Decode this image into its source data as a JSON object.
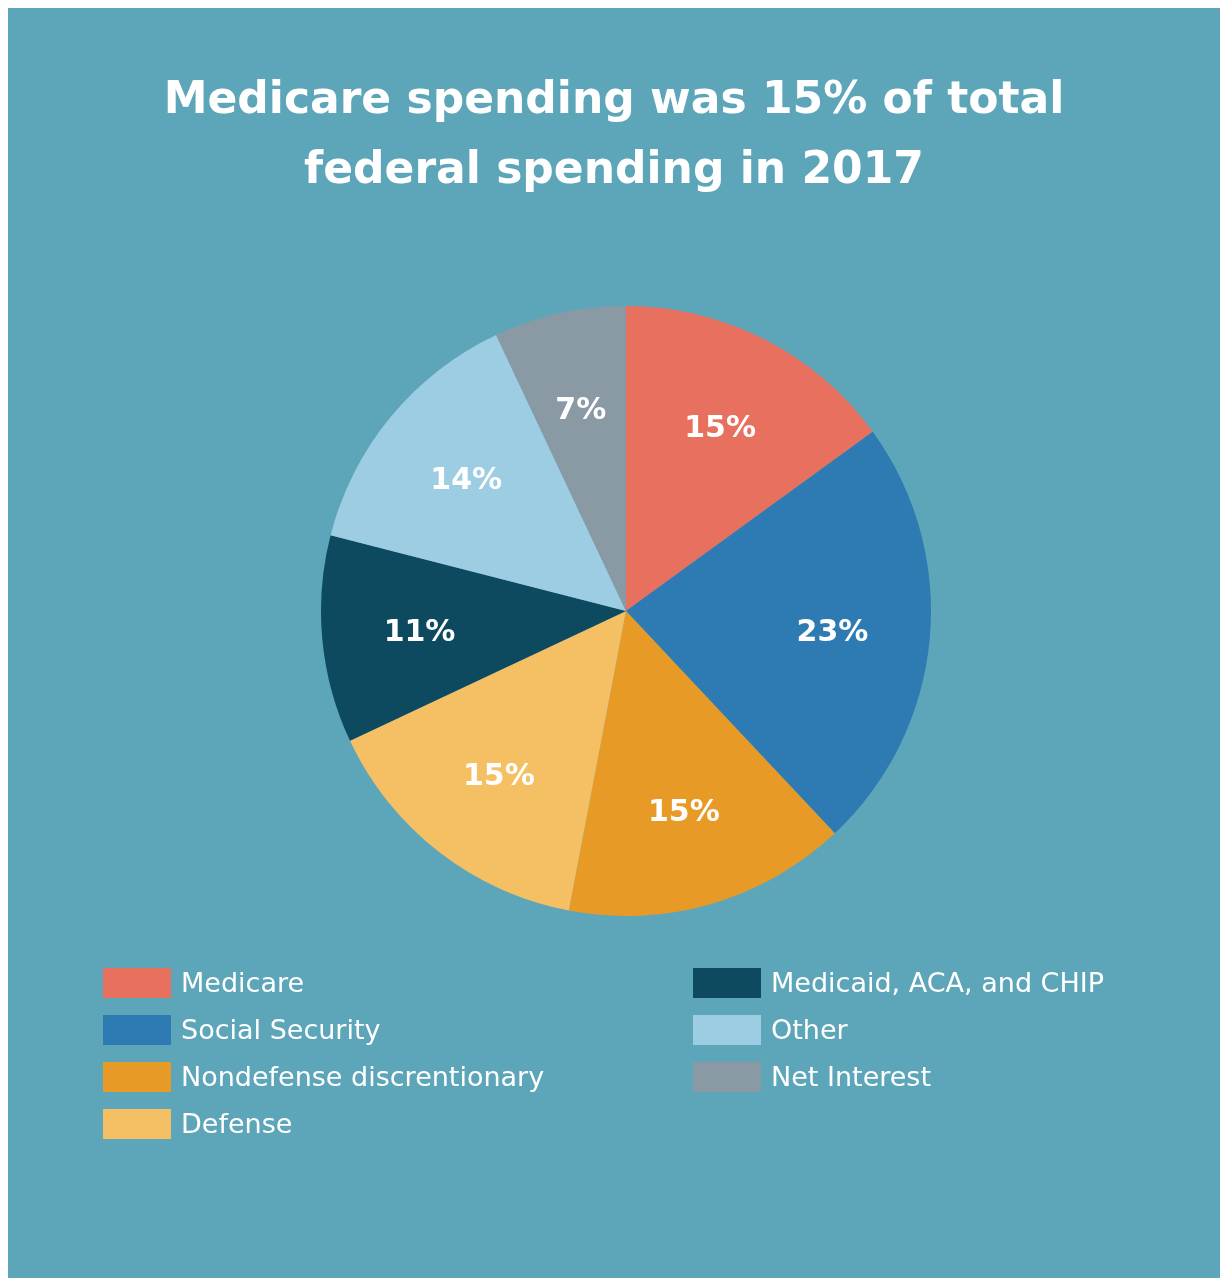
{
  "chart_data": {
    "type": "pie",
    "title": "Medicare spending was 15% of total federal spending in 2017",
    "categories": [
      "Medicare",
      "Social Security",
      "Nondefense discrentionary",
      "Defense",
      "Medicaid, ACA, and CHIP",
      "Other",
      "Net Interest"
    ],
    "values": [
      15,
      23,
      15,
      15,
      11,
      14,
      7
    ],
    "colors": [
      "#e8705f",
      "#2e7bb4",
      "#e89a26",
      "#f4c063",
      "#0d4a60",
      "#9ccde3",
      "#8a9aa5"
    ],
    "value_labels": [
      "15%",
      "23%",
      "15%",
      "15%",
      "11%",
      "14%",
      "7%"
    ],
    "legend": "bottom"
  }
}
